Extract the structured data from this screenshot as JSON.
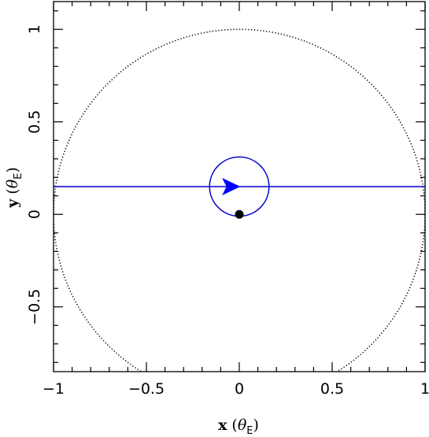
{
  "chart_data": {
    "type": "scatter",
    "title": "",
    "xlabel": {
      "text": "x",
      "symbol": "θ",
      "subscript": "E"
    },
    "ylabel": {
      "text": "y",
      "symbol": "θ",
      "subscript": "E"
    },
    "xlim": [
      -1.0,
      1.0
    ],
    "ylim": [
      -0.85,
      1.15
    ],
    "x_ticks": [
      {
        "value": -1,
        "label": "−1"
      },
      {
        "value": -0.5,
        "label": "−0.5"
      },
      {
        "value": 0,
        "label": "0"
      },
      {
        "value": 0.5,
        "label": "0.5"
      },
      {
        "value": 1,
        "label": "1"
      }
    ],
    "y_ticks": [
      {
        "value": -0.5,
        "label": "−0.5"
      },
      {
        "value": 0,
        "label": "0"
      },
      {
        "value": 0.5,
        "label": "0.5"
      },
      {
        "value": 1,
        "label": "1"
      }
    ],
    "minor_step": 0.1,
    "grid": false,
    "einstein_ring": {
      "center": [
        0,
        0
      ],
      "radius": 1.0,
      "style": "dotted",
      "color": "#000000"
    },
    "source_trajectory": {
      "y": 0.15,
      "direction": "+x",
      "color": "#0000cc"
    },
    "source_circle": {
      "center": [
        0,
        0.15
      ],
      "radius": 0.16,
      "color": "#0000cc"
    },
    "direction_arrow": {
      "at": [
        -0.05,
        0.15
      ],
      "color": "#0000ff"
    },
    "lens": {
      "x": 0,
      "y": 0,
      "color": "#000000"
    }
  }
}
